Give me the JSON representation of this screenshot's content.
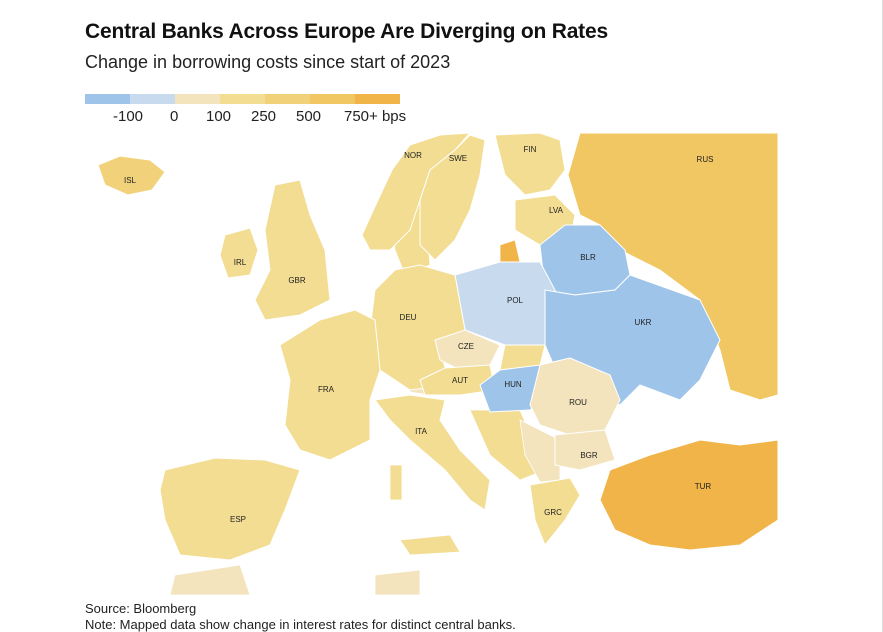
{
  "title": "Central Banks Across Europe Are Diverging on Rates",
  "subtitle": "Change in borrowing costs since start of 2023",
  "legend": {
    "colors": [
      "#9fc4ea",
      "#c8daee",
      "#f3e4bd",
      "#f2dd92",
      "#f1d27a",
      "#f0c763",
      "#f0b449"
    ],
    "labels": [
      "-100",
      "0",
      "100",
      "250",
      "500",
      "750+ bps"
    ]
  },
  "countries": [
    {
      "code": "ISL",
      "bin": 4
    },
    {
      "code": "NOR",
      "bin": 3
    },
    {
      "code": "SWE",
      "bin": 3
    },
    {
      "code": "FIN",
      "bin": 3
    },
    {
      "code": "RUS",
      "bin": 5
    },
    {
      "code": "LVA",
      "bin": 3
    },
    {
      "code": "IRL",
      "bin": 3
    },
    {
      "code": "GBR",
      "bin": 3
    },
    {
      "code": "BLR",
      "bin": 0
    },
    {
      "code": "POL",
      "bin": 1
    },
    {
      "code": "DEU",
      "bin": 3
    },
    {
      "code": "UKR",
      "bin": 0
    },
    {
      "code": "CZE",
      "bin": 2
    },
    {
      "code": "FRA",
      "bin": 3
    },
    {
      "code": "AUT",
      "bin": 3
    },
    {
      "code": "HUN",
      "bin": 0
    },
    {
      "code": "ROU",
      "bin": 2
    },
    {
      "code": "ITA",
      "bin": 3
    },
    {
      "code": "BGR",
      "bin": 2
    },
    {
      "code": "ESP",
      "bin": 3
    },
    {
      "code": "TUR",
      "bin": 6
    },
    {
      "code": "GRC",
      "bin": 3
    }
  ],
  "source": "Source: Bloomberg",
  "note": "Note: Mapped data show change in interest rates for distinct central banks."
}
